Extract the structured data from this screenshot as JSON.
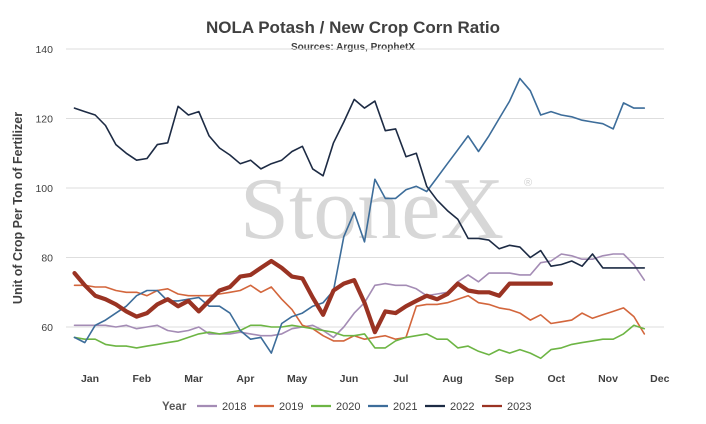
{
  "chart_data": {
    "type": "line",
    "title": "NOLA Potash / New Crop Corn Ratio",
    "subtitle": "Sources: Argus, ProphetX",
    "ylabel": "Unit of Crop Per Ton of Fertilizer",
    "xlabel": "",
    "ylim": [
      50,
      140
    ],
    "xlim": [
      0.7,
      12.12
    ],
    "yticks": [
      60,
      80,
      100,
      120,
      140
    ],
    "grid": true,
    "legend_title": "Year",
    "legend_position": "bottom",
    "categories": [
      "Jan",
      "Feb",
      "Mar",
      "Apr",
      "May",
      "Jun",
      "Jul",
      "Aug",
      "Sep",
      "Oct",
      "Nov",
      "Dec"
    ],
    "watermark": "StoneX",
    "series": [
      {
        "name": "2018",
        "color": "#a48cb5",
        "width": 1.6,
        "x": [
          0.7,
          0.9,
          1.1,
          1.3,
          1.5,
          1.7,
          1.9,
          2.1,
          2.3,
          2.5,
          2.7,
          2.9,
          3.1,
          3.3,
          3.5,
          3.7,
          3.9,
          4.1,
          4.3,
          4.5,
          4.7,
          4.9,
          5.1,
          5.3,
          5.5,
          5.7,
          5.9,
          6.1,
          6.3,
          6.5,
          6.7,
          6.9,
          7.1,
          7.3,
          7.5,
          7.7,
          7.9,
          8.1,
          8.3,
          8.5,
          8.7,
          8.9,
          9.1,
          9.3,
          9.5,
          9.7,
          9.9,
          10.1,
          10.3,
          10.5,
          10.7,
          10.9,
          11.1,
          11.3,
          11.5,
          11.7
        ],
        "y": [
          60.5,
          60.5,
          60.5,
          60.5,
          60,
          60.5,
          59.5,
          60,
          60.5,
          59,
          58.5,
          59,
          60,
          58,
          58,
          58,
          58.5,
          58,
          57.5,
          57.5,
          58,
          59.5,
          60,
          60.5,
          59,
          57,
          60,
          64,
          67,
          72,
          72.5,
          72,
          72,
          71,
          69,
          69.5,
          70,
          73,
          75,
          73,
          75.5,
          75.5,
          75.5,
          75,
          75,
          78.5,
          79,
          81,
          80.5,
          79.5,
          79.5,
          80.5,
          81,
          81,
          78,
          73.5
        ]
      },
      {
        "name": "2019",
        "color": "#d3663c",
        "width": 1.6,
        "x": [
          0.7,
          0.9,
          1.1,
          1.3,
          1.5,
          1.7,
          1.9,
          2.1,
          2.3,
          2.5,
          2.7,
          2.9,
          3.1,
          3.3,
          3.5,
          3.7,
          3.9,
          4.1,
          4.3,
          4.5,
          4.7,
          4.9,
          5.1,
          5.3,
          5.5,
          5.7,
          5.9,
          6.1,
          6.3,
          6.5,
          6.7,
          6.9,
          7.1,
          7.3,
          7.5,
          7.7,
          7.9,
          8.1,
          8.3,
          8.5,
          8.7,
          8.9,
          9.1,
          9.3,
          9.5,
          9.7,
          9.9,
          10.1,
          10.3,
          10.5,
          10.7,
          10.9,
          11.1,
          11.3,
          11.5,
          11.7
        ],
        "y": [
          72,
          72,
          71.5,
          71.5,
          70.5,
          70,
          70,
          69,
          70.5,
          71,
          69.5,
          69,
          69,
          69,
          69.5,
          70,
          70.5,
          72,
          70,
          71.5,
          68,
          65,
          60.5,
          59.5,
          57.5,
          56,
          56,
          57.5,
          56.5,
          57,
          57.5,
          56.5,
          57,
          66,
          66.5,
          66.5,
          67,
          68,
          69,
          67,
          66.5,
          65.5,
          65,
          64,
          62,
          63.5,
          61,
          61.5,
          62,
          64,
          62.5,
          63.5,
          64.5,
          65.5,
          63,
          58
        ]
      },
      {
        "name": "2020",
        "color": "#6db544",
        "width": 1.6,
        "x": [
          0.7,
          0.9,
          1.1,
          1.3,
          1.5,
          1.7,
          1.9,
          2.1,
          2.3,
          2.5,
          2.7,
          2.9,
          3.1,
          3.3,
          3.5,
          3.7,
          3.9,
          4.1,
          4.3,
          4.5,
          4.7,
          4.9,
          5.1,
          5.3,
          5.5,
          5.7,
          5.9,
          6.1,
          6.3,
          6.5,
          6.7,
          6.9,
          7.1,
          7.3,
          7.5,
          7.7,
          7.9,
          8.1,
          8.3,
          8.5,
          8.7,
          8.9,
          9.1,
          9.3,
          9.5,
          9.7,
          9.9,
          10.1,
          10.3,
          10.5,
          10.7,
          10.9,
          11.1,
          11.3,
          11.5,
          11.7
        ],
        "y": [
          57,
          56.5,
          56.5,
          55,
          54.5,
          54.5,
          54,
          54.5,
          55,
          55.5,
          56,
          57,
          58,
          58.5,
          58,
          58.5,
          59,
          60.5,
          60.5,
          60,
          60,
          60.5,
          60,
          59.5,
          59,
          58.5,
          57.5,
          57.5,
          58,
          54,
          54,
          56,
          57,
          57.5,
          58,
          56.5,
          56.5,
          54,
          54.5,
          53,
          52,
          53.5,
          52.5,
          53.5,
          52.5,
          51,
          53.5,
          54,
          55,
          55.5,
          56,
          56.5,
          56.5,
          58,
          60.5,
          59.5
        ]
      },
      {
        "name": "2021",
        "color": "#3d6d9a",
        "width": 1.6,
        "x": [
          0.7,
          0.9,
          1.1,
          1.3,
          1.5,
          1.7,
          1.9,
          2.1,
          2.3,
          2.5,
          2.7,
          2.9,
          3.1,
          3.3,
          3.5,
          3.7,
          3.9,
          4.1,
          4.3,
          4.5,
          4.7,
          4.9,
          5.1,
          5.3,
          5.5,
          5.7,
          5.9,
          6.1,
          6.3,
          6.5,
          6.7,
          6.9,
          7.1,
          7.3,
          7.5,
          7.7,
          7.9,
          8.1,
          8.3,
          8.5,
          8.7,
          8.9,
          9.1,
          9.3,
          9.5,
          9.7,
          9.9,
          10.1,
          10.3,
          10.5,
          10.7,
          10.9,
          11.1,
          11.3,
          11.5,
          11.7
        ],
        "y": [
          57,
          55.5,
          60.5,
          62,
          64,
          66,
          69,
          70.5,
          70.5,
          67.5,
          67.5,
          68,
          68.5,
          66,
          66,
          64,
          59,
          56.5,
          57,
          52.5,
          61,
          63,
          64,
          66,
          67,
          70.5,
          86,
          93,
          84.5,
          102.5,
          97,
          97,
          99.5,
          100.5,
          99,
          103,
          107,
          111,
          115,
          110.5,
          115,
          120,
          125,
          131.5,
          128,
          121,
          122,
          121,
          120.5,
          119.5,
          119,
          118.5,
          117,
          124.5,
          123,
          123
        ]
      },
      {
        "name": "2022",
        "color": "#1d2b44",
        "width": 1.6,
        "x": [
          0.7,
          0.9,
          1.1,
          1.3,
          1.5,
          1.7,
          1.9,
          2.1,
          2.3,
          2.5,
          2.7,
          2.9,
          3.1,
          3.3,
          3.5,
          3.7,
          3.9,
          4.1,
          4.3,
          4.5,
          4.7,
          4.9,
          5.1,
          5.3,
          5.5,
          5.7,
          5.9,
          6.1,
          6.3,
          6.5,
          6.7,
          6.9,
          7.1,
          7.3,
          7.5,
          7.7,
          7.9,
          8.1,
          8.3,
          8.5,
          8.7,
          8.9,
          9.1,
          9.3,
          9.5,
          9.7,
          9.9,
          10.1,
          10.3,
          10.5,
          10.7,
          10.9,
          11.1,
          11.3,
          11.5,
          11.7
        ],
        "y": [
          123,
          122,
          121,
          118,
          112.5,
          110,
          108,
          108.5,
          112.5,
          113,
          123.5,
          121,
          122,
          115,
          111.5,
          109.5,
          107,
          108,
          105.5,
          107,
          108,
          110.5,
          112,
          105.5,
          103.5,
          113,
          119,
          125.5,
          123,
          125,
          116.5,
          117,
          109,
          110,
          100.5,
          96.5,
          93.5,
          91,
          85.5,
          85.5,
          85,
          82.5,
          83.5,
          83,
          80,
          82,
          77.5,
          78,
          79,
          77.5,
          81,
          77,
          77,
          77,
          77,
          77
        ]
      },
      {
        "name": "2023",
        "color": "#9a3323",
        "width": 4.2,
        "x": [
          0.7,
          0.9,
          1.1,
          1.3,
          1.5,
          1.7,
          1.9,
          2.1,
          2.3,
          2.5,
          2.7,
          2.9,
          3.1,
          3.3,
          3.5,
          3.7,
          3.9,
          4.1,
          4.3,
          4.5,
          4.7,
          4.9,
          5.1,
          5.3,
          5.5,
          5.7,
          5.9,
          6.1,
          6.3,
          6.5,
          6.7,
          6.9,
          7.1,
          7.3,
          7.5,
          7.7,
          7.9,
          8.1,
          8.3,
          8.5,
          8.7,
          8.9,
          9.1,
          9.3,
          9.5,
          9.7,
          9.9
        ],
        "y": [
          75.5,
          72,
          69,
          68,
          66.5,
          64.5,
          63,
          64,
          66.5,
          68,
          66,
          67.5,
          64.5,
          67.5,
          70.5,
          71.5,
          74.5,
          75,
          77,
          79,
          77,
          74.5,
          74,
          68.5,
          63.5,
          70.5,
          72.5,
          73.5,
          67,
          58.5,
          64.5,
          64,
          66,
          67.5,
          69,
          68,
          69.5,
          72.5,
          70.5,
          70,
          70,
          69,
          72.5,
          72.5,
          72.5,
          72.5,
          72.5
        ]
      }
    ]
  }
}
